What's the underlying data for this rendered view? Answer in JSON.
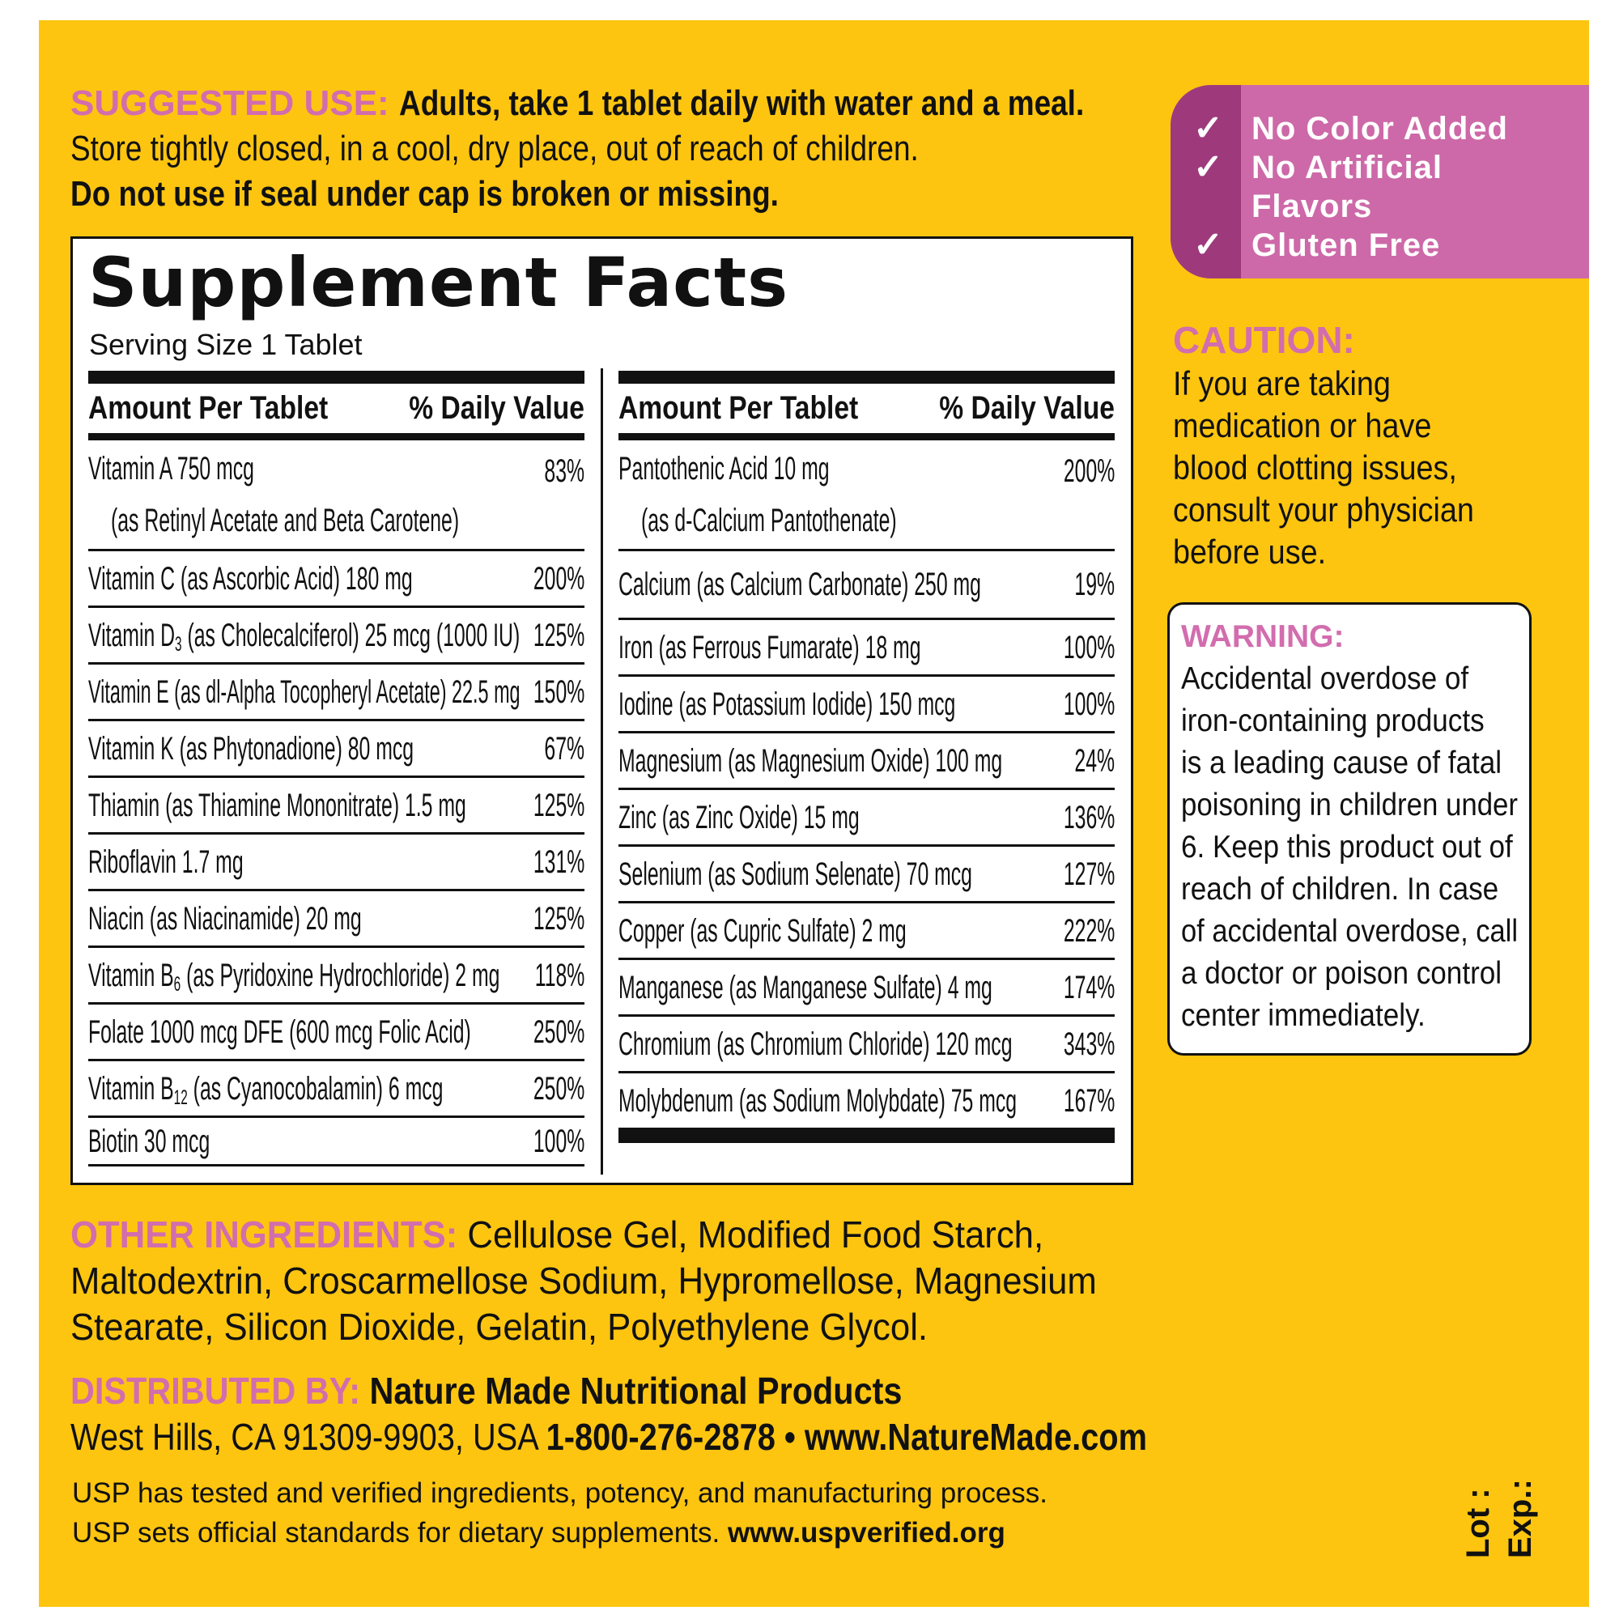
{
  "colors": {
    "background": "#FDC510",
    "pink_heading": "#D26DAE",
    "badge": "#CD69A8",
    "badge_dark": "#9E3A7C"
  },
  "suggested_use": {
    "label": "SUGGESTED USE:",
    "line1": "Adults, take 1 tablet daily with water and a meal.",
    "line2": "Store tightly closed, in a cool, dry place, out of reach of children.",
    "line3": "Do not use if seal under cap is broken or missing."
  },
  "facts": {
    "title": "Supplement Facts",
    "serving": "Serving Size 1 Tablet",
    "amount_header": "Amount Per Tablet",
    "dv_header": "% Daily Value",
    "left": [
      {
        "pre": "Vitamin A  750 mcg",
        "line2": "(as Retinyl Acetate and Beta Carotene)",
        "dv": "83%"
      },
      {
        "pre": "Vitamin C (as Ascorbic Acid)  180 mg",
        "dv": "200%"
      },
      {
        "pre": "Vitamin D",
        "sub": "3",
        "post": " (as Cholecalciferol)  25 mcg (1000 IU)",
        "dv": "125%"
      },
      {
        "pre": "Vitamin E (as dl-Alpha Tocopheryl Acetate)  22.5 mg",
        "dv": "150%"
      },
      {
        "pre": "Vitamin K (as Phytonadione)  80 mcg",
        "dv": "67%"
      },
      {
        "pre": "Thiamin (as Thiamine Mononitrate)  1.5 mg",
        "dv": "125%"
      },
      {
        "pre": "Riboflavin  1.7 mg",
        "dv": "131%"
      },
      {
        "pre": "Niacin (as Niacinamide)  20 mg",
        "dv": "125%"
      },
      {
        "pre": "Vitamin B",
        "sub": "6",
        "post": " (as Pyridoxine Hydrochloride)  2 mg",
        "dv": "118%"
      },
      {
        "pre": "Folate  1000 mcg DFE (600 mcg Folic Acid)",
        "dv": "250%"
      },
      {
        "pre": "Vitamin B",
        "sub": "12",
        "post": " (as Cyanocobalamin)  6 mcg",
        "dv": "250%"
      },
      {
        "pre": "Biotin  30 mcg",
        "dv": "100%"
      }
    ],
    "right": [
      {
        "pre": "Pantothenic Acid  10 mg",
        "line2": "(as d-Calcium Pantothenate)",
        "dv": "200%"
      },
      {
        "pre": "Calcium (as Calcium Carbonate)  250 mg",
        "dv": "19%"
      },
      {
        "pre": "Iron (as Ferrous Fumarate)  18 mg",
        "dv": "100%"
      },
      {
        "pre": "Iodine (as Potassium Iodide)  150 mcg",
        "dv": "100%"
      },
      {
        "pre": "Magnesium (as Magnesium Oxide)  100 mg",
        "dv": "24%"
      },
      {
        "pre": "Zinc (as Zinc Oxide)  15 mg",
        "dv": "136%"
      },
      {
        "pre": "Selenium (as Sodium Selenate)  70 mcg",
        "dv": "127%"
      },
      {
        "pre": "Copper (as Cupric Sulfate)  2 mg",
        "dv": "222%"
      },
      {
        "pre": "Manganese (as Manganese Sulfate)  4 mg",
        "dv": "174%"
      },
      {
        "pre": "Chromium (as Chromium Chloride)  120 mcg",
        "dv": "343%"
      },
      {
        "pre": "Molybdenum (as Sodium Molybdate)  75 mcg",
        "dv": "167%"
      }
    ]
  },
  "badge": {
    "icon": "check-icon",
    "items": [
      "No Color Added",
      "No Artificial",
      "Flavors",
      "Gluten Free"
    ]
  },
  "caution": {
    "label": "CAUTION:",
    "lines": [
      "If you are taking",
      "medication or have",
      "blood clotting issues,",
      "consult your physician",
      "before use."
    ]
  },
  "warning": {
    "label": "WARNING:",
    "lines": [
      "Accidental overdose of",
      "iron-containing products",
      "is a leading cause of fatal",
      "poisoning in children under",
      "6. Keep this product out of",
      "reach of children. In case",
      "of accidental overdose, call",
      "a doctor or poison control",
      "center immediately."
    ]
  },
  "other": {
    "label": "OTHER INGREDIENTS:",
    "line1": " Cellulose Gel, Modified Food Starch,",
    "line2": "Maltodextrin, Croscarmellose Sodium, Hypromellose, Magnesium",
    "line3": "Stearate, Silicon Dioxide, Gelatin, Polyethylene Glycol."
  },
  "distributed": {
    "label": "DISTRIBUTED BY:",
    "company": " Nature Made Nutritional Products",
    "address": "West Hills, CA 91309-9903, USA ",
    "phone": "1-800-276-2878",
    "sep": " • ",
    "website": "www.NatureMade.com"
  },
  "usp": {
    "line1": "USP has tested and verified ingredients, potency, and manufacturing process.",
    "line2": "USP sets official standards for dietary supplements. ",
    "link": "www.uspverified.org"
  },
  "lot": {
    "lot": "Lot :",
    "exp": "Exp.:"
  }
}
